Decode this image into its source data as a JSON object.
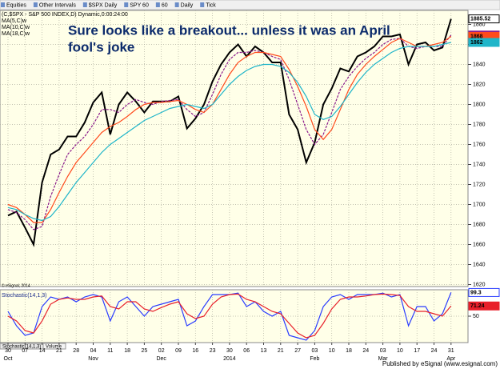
{
  "toolbar": {
    "items": [
      "Equities",
      "Other Intervals",
      "$SPX Daily",
      "SPY 60",
      "60",
      "Daily",
      "Tick"
    ]
  },
  "chart_data": [
    {
      "type": "line",
      "title": "(C,$SPX - S&P 500 INDEX,D) Dynamic,0:00:24:00",
      "annotation": [
        "Sure looks like a breakout... unless it was an April",
        "fool's joke"
      ],
      "copyright": "© eSignal, 2014",
      "ylim": [
        1618,
        1894
      ],
      "yticks": [
        1620,
        1640,
        1660,
        1680,
        1700,
        1720,
        1740,
        1760,
        1780,
        1800,
        1820,
        1840,
        1860,
        1880
      ],
      "grid": true,
      "series": [
        {
          "color": "#000000",
          "values": [
            1689,
            1693,
            1677,
            1660,
            1722,
            1750,
            1755,
            1768,
            1768,
            1782,
            1802,
            1812,
            1770,
            1800,
            1812,
            1803,
            1792,
            1803,
            1803,
            1803,
            1808,
            1776,
            1786,
            1800,
            1823,
            1840,
            1852,
            1860,
            1848,
            1858,
            1852,
            1842,
            1842,
            1790,
            1775,
            1742,
            1762,
            1800,
            1816,
            1836,
            1833,
            1848,
            1852,
            1858,
            1868,
            1868,
            1870,
            1840,
            1860,
            1862,
            1854,
            1857,
            1885.52
          ]
        },
        {
          "name": "MA(5,C)w",
          "color": "#8b1a8b",
          "values": [
            1695,
            1692,
            1685,
            1675,
            1678,
            1708,
            1730,
            1750,
            1760,
            1768,
            1780,
            1795,
            1795,
            1792,
            1800,
            1805,
            1802,
            1800,
            1803,
            1804,
            1805,
            1795,
            1788,
            1792,
            1810,
            1830,
            1845,
            1852,
            1852,
            1854,
            1852,
            1848,
            1845,
            1825,
            1800,
            1775,
            1760,
            1770,
            1792,
            1815,
            1828,
            1838,
            1846,
            1852,
            1860,
            1865,
            1866,
            1858,
            1856,
            1858,
            1858,
            1858,
            1869.364
          ]
        },
        {
          "name": "MA(10,C)w",
          "color": "#ff4a1c",
          "values": [
            1700,
            1697,
            1690,
            1682,
            1682,
            1695,
            1712,
            1728,
            1742,
            1752,
            1762,
            1772,
            1778,
            1782,
            1788,
            1795,
            1800,
            1802,
            1802,
            1803,
            1804,
            1800,
            1795,
            1792,
            1800,
            1815,
            1830,
            1842,
            1848,
            1852,
            1852,
            1850,
            1848,
            1835,
            1818,
            1798,
            1775,
            1765,
            1775,
            1795,
            1815,
            1830,
            1840,
            1848,
            1855,
            1862,
            1866,
            1862,
            1858,
            1858,
            1860,
            1862,
            1868
          ]
        },
        {
          "name": "MA(18,C)w",
          "color": "#1fb5c9",
          "values": [
            1697,
            1695,
            1690,
            1686,
            1684,
            1688,
            1698,
            1710,
            1722,
            1732,
            1742,
            1752,
            1760,
            1766,
            1772,
            1778,
            1784,
            1788,
            1792,
            1796,
            1798,
            1800,
            1798,
            1796,
            1800,
            1810,
            1820,
            1828,
            1834,
            1838,
            1840,
            1840,
            1838,
            1832,
            1822,
            1808,
            1790,
            1785,
            1788,
            1798,
            1810,
            1822,
            1832,
            1840,
            1846,
            1852,
            1856,
            1858,
            1858,
            1858,
            1858,
            1860,
            1862
          ]
        }
      ]
    },
    {
      "type": "line",
      "title": "Stochastic(14,1,3)",
      "tabs": [
        "Stochastic(14,1,3)",
        "Volume"
      ],
      "ylim": [
        -5,
        105
      ],
      "yticks": [
        50
      ],
      "categories": [
        "30",
        null,
        "07",
        null,
        "14",
        null,
        "21",
        null,
        "28",
        null,
        "04",
        null,
        "11",
        null,
        "18",
        null,
        "25",
        null,
        "02",
        null,
        "09",
        null,
        "16",
        null,
        "23",
        null,
        "30",
        null,
        "06",
        null,
        "13",
        null,
        "21",
        null,
        "27",
        null,
        "03",
        null,
        "10",
        null,
        "18",
        null,
        "24",
        null,
        "03",
        null,
        "10",
        null,
        "17",
        null,
        "24",
        null,
        "31"
      ],
      "month_labels": [
        "Oct",
        null,
        null,
        null,
        null,
        null,
        null,
        null,
        null,
        null,
        "Nov",
        null,
        null,
        null,
        null,
        null,
        null,
        null,
        "Dec",
        null,
        null,
        null,
        null,
        null,
        null,
        null,
        "2014",
        null,
        null,
        null,
        null,
        null,
        null,
        null,
        null,
        null,
        "Feb",
        null,
        null,
        null,
        null,
        null,
        null,
        null,
        "Mar",
        null,
        null,
        null,
        null,
        null,
        null,
        null,
        "Apr"
      ],
      "series": [
        {
          "color": "#2a3cff",
          "values": [
            60,
            30,
            10,
            15,
            70,
            90,
            85,
            90,
            80,
            90,
            95,
            90,
            40,
            80,
            90,
            70,
            50,
            70,
            75,
            80,
            85,
            30,
            40,
            70,
            95,
            95,
            95,
            98,
            70,
            80,
            60,
            50,
            60,
            10,
            5,
            0,
            20,
            70,
            90,
            95,
            85,
            95,
            95,
            95,
            98,
            90,
            95,
            30,
            70,
            70,
            40,
            55,
            99.3
          ]
        },
        {
          "color": "#e8202a",
          "values": [
            50,
            40,
            20,
            15,
            40,
            75,
            85,
            88,
            85,
            85,
            90,
            92,
            70,
            65,
            80,
            80,
            65,
            60,
            68,
            75,
            80,
            55,
            45,
            50,
            75,
            90,
            95,
            96,
            85,
            80,
            70,
            60,
            55,
            35,
            15,
            5,
            10,
            35,
            65,
            85,
            90,
            90,
            92,
            95,
            96,
            95,
            93,
            70,
            60,
            60,
            55,
            50,
            71.24
          ]
        }
      ]
    }
  ],
  "footer": "Published by eSignal (www.esignal.com)"
}
